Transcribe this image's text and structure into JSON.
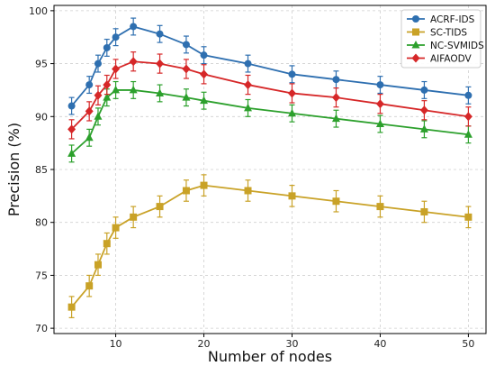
{
  "chart_data": {
    "type": "line",
    "title": "",
    "xlabel": "Number of nodes",
    "ylabel": "Precision (%)",
    "xlim": [
      3,
      52
    ],
    "ylim": [
      69.5,
      100.5
    ],
    "x_ticks": [
      10,
      20,
      30,
      40,
      50
    ],
    "y_ticks": [
      70,
      75,
      80,
      85,
      90,
      95,
      100
    ],
    "grid": true,
    "legend_position": "top-right",
    "x": [
      5,
      7,
      8,
      9,
      10,
      12,
      15,
      18,
      20,
      25,
      30,
      35,
      40,
      45,
      50
    ],
    "series": [
      {
        "name": "ACRF-IDS",
        "color": "#2e6fb0",
        "marker": "circle",
        "values": [
          91.0,
          93.0,
          95.0,
          96.5,
          97.5,
          98.5,
          97.8,
          96.8,
          95.8,
          95.0,
          94.0,
          93.5,
          93.0,
          92.5,
          92.0
        ],
        "errors": [
          0.8,
          0.8,
          0.8,
          0.8,
          0.8,
          0.8,
          0.8,
          0.8,
          0.8,
          0.8,
          0.8,
          0.8,
          0.8,
          0.8,
          0.8
        ]
      },
      {
        "name": "SC-TIDS",
        "color": "#c9a227",
        "marker": "square",
        "values": [
          72.0,
          74.0,
          76.0,
          78.0,
          79.5,
          80.5,
          81.5,
          83.0,
          83.5,
          83.0,
          82.5,
          82.0,
          81.5,
          81.0,
          80.5
        ],
        "errors": [
          1.0,
          1.0,
          1.0,
          1.0,
          1.0,
          1.0,
          1.0,
          1.0,
          1.0,
          1.0,
          1.0,
          1.0,
          1.0,
          1.0,
          1.0
        ]
      },
      {
        "name": "NC-SVMIDS",
        "color": "#2ca02c",
        "marker": "triangle",
        "values": [
          86.5,
          88.0,
          90.0,
          91.8,
          92.5,
          92.5,
          92.2,
          91.8,
          91.5,
          90.8,
          90.3,
          89.8,
          89.3,
          88.8,
          88.3
        ],
        "errors": [
          0.8,
          0.8,
          0.8,
          0.8,
          0.8,
          0.8,
          0.8,
          0.8,
          0.8,
          0.8,
          0.8,
          0.8,
          0.8,
          0.8,
          0.8
        ]
      },
      {
        "name": "AIFAODV",
        "color": "#d62728",
        "marker": "diamond",
        "values": [
          88.8,
          90.5,
          92.0,
          93.0,
          94.5,
          95.2,
          95.0,
          94.5,
          94.0,
          93.0,
          92.2,
          91.8,
          91.2,
          90.6,
          90.0
        ],
        "errors": [
          0.9,
          0.9,
          0.9,
          0.9,
          0.9,
          0.9,
          0.9,
          0.9,
          0.9,
          0.9,
          0.9,
          0.9,
          0.9,
          0.9,
          0.9
        ]
      }
    ]
  }
}
